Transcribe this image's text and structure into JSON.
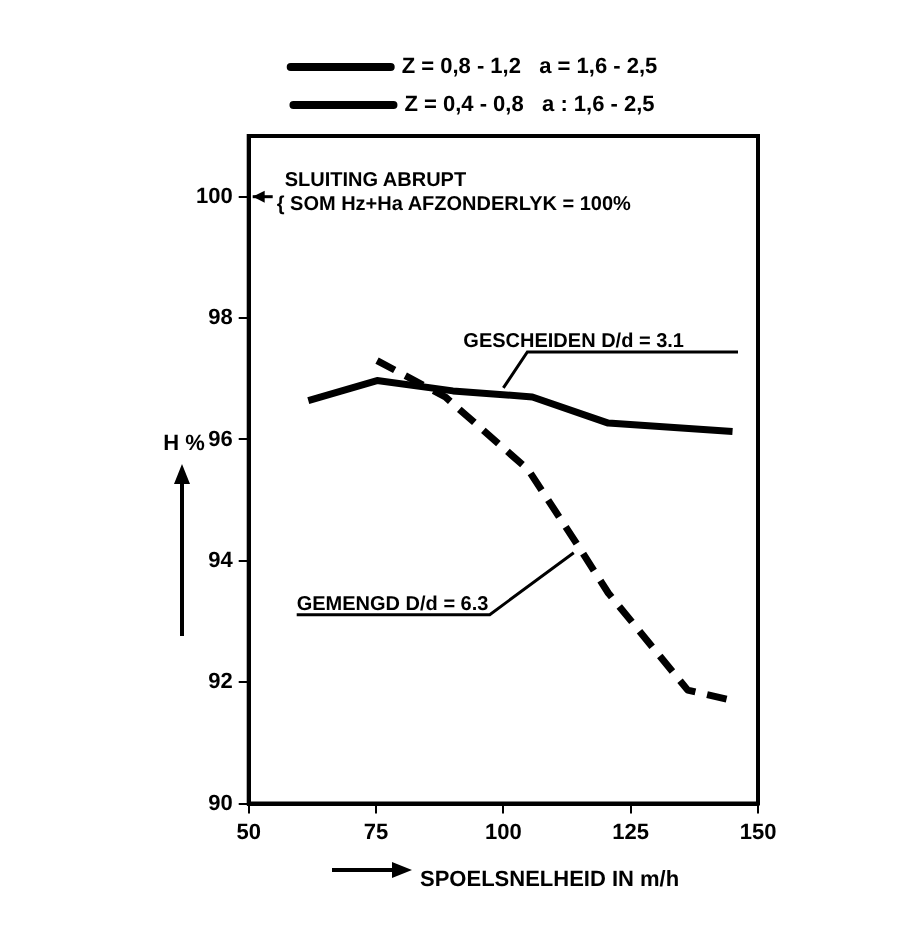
{
  "chart_data": {
    "type": "line",
    "xlabel": "SPOELSNELHEID IN m/h",
    "ylabel": "H %",
    "x": [
      61.7,
      75.2,
      90.1,
      105.7,
      120.6,
      145
    ],
    "series": [
      {
        "name": "Z = 0,8 - 1,2   a = 1,6 - 2,5",
        "color": "#000000",
        "line_style": "solid",
        "values": [
          96.64,
          96.97,
          96.8,
          96.7,
          96.27,
          96.13
        ]
      },
      {
        "name": "Z = 0,4 - 0,8   a : 1,6 - 2,5",
        "color": "#000000",
        "line_style": "dashed",
        "x": [
          75.2,
          88.6,
          104.9,
          114.5,
          120.6,
          136.2,
          145
        ],
        "values": [
          97.3,
          96.7,
          95.5,
          94.27,
          93.47,
          91.87,
          91.7
        ]
      }
    ],
    "xlim": [
      50,
      150
    ],
    "xticks": [
      50,
      75,
      100,
      125,
      150
    ],
    "ylim": [
      90,
      101
    ],
    "yticks": [
      90,
      92,
      94,
      96,
      98,
      100
    ],
    "grid": false,
    "legend": "top",
    "marker": "none",
    "annotations": [
      "SLUITING ABRUPT",
      "{ SOM Hz+Ha AFZONDERLYK = 100%",
      {
        "text": "GESCHEIDEN D/d = 3.1",
        "x": 100,
        "y": 96.75
      },
      {
        "text": "GEMENGD D/d = 6.3",
        "x": 115,
        "y": 94.2
      }
    ]
  }
}
